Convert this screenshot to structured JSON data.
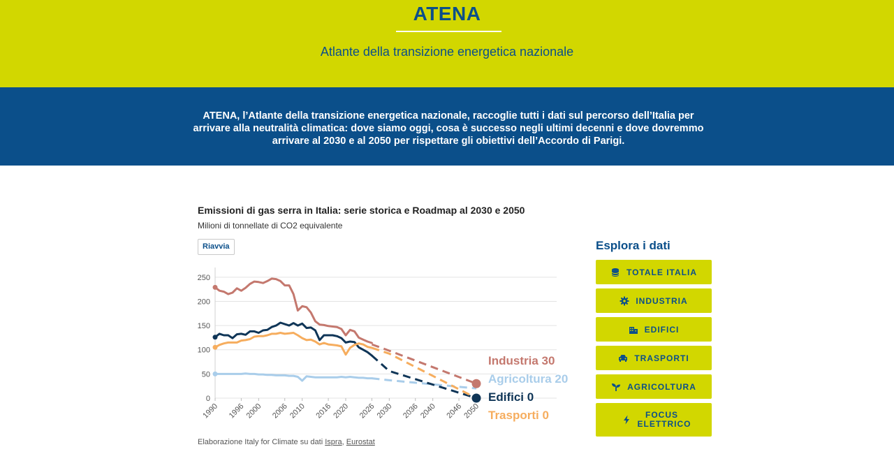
{
  "header": {
    "title": "ATENA",
    "subtitle": "Atlante della transizione energetica nazionale"
  },
  "intro": {
    "text": "ATENA, l’Atlante della transizione energetica nazionale, raccoglie tutti i dati sul percorso dell’Italia per arrivare alla neutralità climatica: dove siamo oggi, cosa è successo negli ultimi decenni e dove dovremmo arrivare al 2030 e al 2050 per rispettare gli obiettivi dell’Accordo di Parigi."
  },
  "chart_block": {
    "title": "Emissioni di gas serra in Italia: serie storica e Roadmap al 2030 e 2050",
    "subtitle": "Milioni di tonnellate di CO2 equivalente",
    "restart_label": "Riavvia",
    "source_prefix": "Elaborazione Italy for Climate su dati ",
    "source_links": [
      "Ispra",
      "Eurostat"
    ],
    "source_sep": ", "
  },
  "chart_data": {
    "type": "line",
    "title": "Emissioni di gas serra in Italia: serie storica e Roadmap al 2030 e 2050",
    "ylabel": "Milioni di tonnellate di CO2 equivalente",
    "ylim": [
      0,
      270
    ],
    "yticks": [
      0,
      50,
      100,
      150,
      200,
      250
    ],
    "xticks": [
      "1990",
      "1996",
      "2000",
      "2006",
      "2010",
      "2016",
      "2020",
      "2026",
      "2030",
      "2036",
      "2040",
      "2046",
      "2050"
    ],
    "grid": true,
    "series": [
      {
        "name": "Industria",
        "color": "#c4786e",
        "end_value": 30,
        "end_label": "Industria 30",
        "historical": [
          229,
          222,
          220,
          215,
          218,
          227,
          222,
          228,
          236,
          241,
          240,
          238,
          242,
          247,
          246,
          242,
          233,
          233,
          215,
          181,
          190,
          188,
          177,
          159,
          152,
          151,
          149,
          148,
          147,
          143,
          130,
          141,
          138,
          125,
          121,
          117,
          114
        ],
        "projection": [
          [
            2026,
            111
          ],
          [
            2030,
            98
          ],
          [
            2050,
            30
          ]
        ]
      },
      {
        "name": "Agricoltura",
        "color": "#a9cdea",
        "end_value": 20,
        "end_label": "Agricoltura 20",
        "historical": [
          50,
          50,
          50,
          50,
          50,
          50,
          50,
          51,
          50,
          50,
          49,
          49,
          48,
          48,
          47,
          47,
          47,
          46,
          46,
          44,
          36,
          45,
          44,
          43,
          43,
          43,
          43,
          43,
          43,
          44,
          43,
          44,
          43,
          42,
          42,
          41,
          41
        ],
        "projection": [
          [
            2026,
            41
          ],
          [
            2030,
            37
          ],
          [
            2050,
            20
          ]
        ]
      },
      {
        "name": "Edifici",
        "color": "#0f3557",
        "end_value": 0,
        "end_label": "Edifici 0",
        "historical": [
          126,
          133,
          130,
          130,
          124,
          132,
          133,
          131,
          138,
          138,
          135,
          140,
          141,
          147,
          150,
          156,
          153,
          150,
          155,
          150,
          154,
          145,
          146,
          140,
          120,
          130,
          130,
          130,
          128,
          124,
          115,
          117,
          116,
          105,
          100,
          95,
          88
        ],
        "projection": [
          [
            2026,
            88
          ],
          [
            2030,
            56
          ],
          [
            2050,
            0
          ]
        ]
      },
      {
        "name": "Trasporti",
        "color": "#f6ad5e",
        "end_value": 0,
        "end_label": "Trasporti 0",
        "historical": [
          105,
          110,
          113,
          115,
          115,
          115,
          119,
          120,
          122,
          127,
          128,
          128,
          130,
          133,
          133,
          135,
          133,
          134,
          135,
          130,
          124,
          120,
          121,
          117,
          111,
          114,
          111,
          110,
          109,
          107,
          90,
          104,
          110,
          113,
          111,
          106,
          104
        ],
        "projection": [
          [
            2026,
            104
          ],
          [
            2030,
            92
          ],
          [
            2050,
            0
          ]
        ]
      }
    ]
  },
  "explore": {
    "title": "Esplora i dati",
    "buttons": [
      {
        "label": "TOTALE ITALIA",
        "icon": "database-icon"
      },
      {
        "label": "INDUSTRIA",
        "icon": "gear-icon"
      },
      {
        "label": "EDIFICI",
        "icon": "buildings-icon"
      },
      {
        "label": "TRASPORTI",
        "icon": "car-icon"
      },
      {
        "label": "AGRICOLTURA",
        "icon": "sprout-icon"
      },
      {
        "label": "FOCUS ELETTRICO",
        "icon": "bolt-icon"
      }
    ]
  }
}
